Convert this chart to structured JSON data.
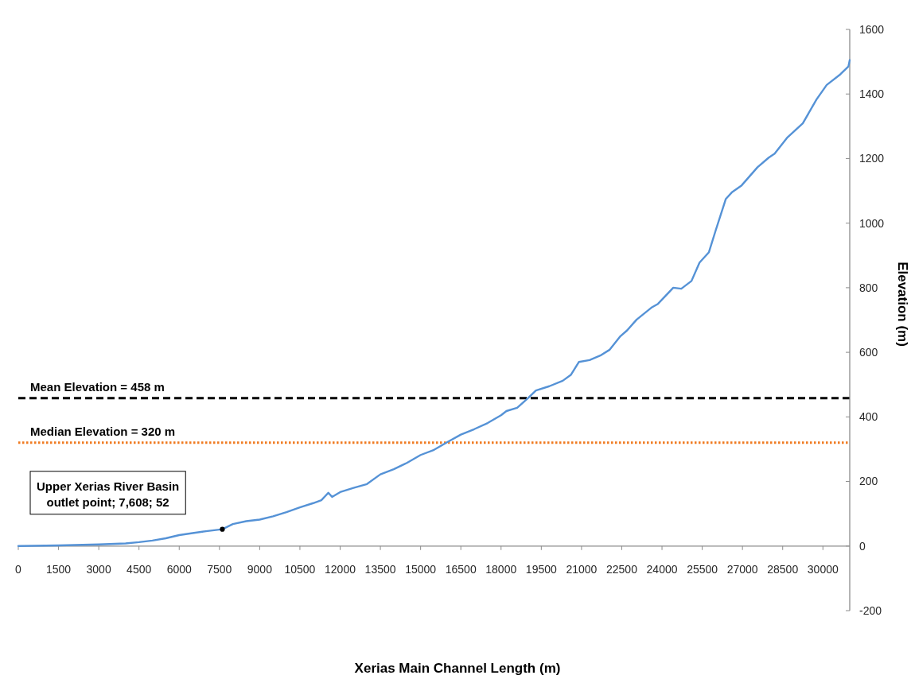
{
  "chart_data": {
    "type": "line",
    "xlabel": "Xerias Main Channel Length (m)",
    "ylabel": "Elevation (m)",
    "xlim": [
      0,
      31000
    ],
    "xticks": [
      0,
      1500,
      3000,
      4500,
      6000,
      7500,
      9000,
      10500,
      12000,
      13500,
      15000,
      16500,
      18000,
      19500,
      21000,
      22500,
      24000,
      25500,
      27000,
      28500,
      30000
    ],
    "ylim": [
      -200,
      1600
    ],
    "yticks": [
      -200,
      0,
      200,
      400,
      600,
      800,
      1000,
      1200,
      1400,
      1600
    ],
    "series": [
      {
        "color": "#5592d6",
        "x": [
          0,
          1500,
          3000,
          4000,
          4500,
          5000,
          5500,
          6000,
          6500,
          7000,
          7608,
          8000,
          8500,
          9000,
          9500,
          10000,
          10500,
          11000,
          11300,
          11560,
          11700,
          12000,
          12500,
          13000,
          13500,
          14000,
          14500,
          15000,
          15500,
          16000,
          16500,
          17000,
          17500,
          18000,
          18200,
          18600,
          19000,
          19300,
          19800,
          20300,
          20600,
          20900,
          21300,
          21700,
          22050,
          22450,
          22700,
          23050,
          23600,
          23850,
          24420,
          24720,
          25100,
          25400,
          25750,
          26000,
          26380,
          26600,
          26970,
          27560,
          27980,
          28200,
          28660,
          29250,
          29760,
          30140,
          30650,
          30950,
          31000
        ],
        "values": [
          0,
          2,
          5,
          8,
          12,
          17,
          24,
          34,
          40,
          46,
          52,
          68,
          77,
          82,
          92,
          105,
          120,
          133,
          142,
          165,
          152,
          167,
          180,
          192,
          222,
          238,
          258,
          282,
          298,
          322,
          345,
          362,
          381,
          405,
          418,
          428,
          458,
          482,
          495,
          512,
          530,
          570,
          576,
          590,
          608,
          650,
          668,
          701,
          738,
          750,
          800,
          797,
          821,
          878,
          910,
          977,
          1075,
          1095,
          1117,
          1173,
          1203,
          1215,
          1264,
          1309,
          1383,
          1428,
          1461,
          1485,
          1505
        ]
      },
      {
        "type": "scatter",
        "color": "#000000",
        "marker": "circle",
        "x": [
          7608
        ],
        "values": [
          52
        ]
      }
    ],
    "ref_lines": [
      {
        "axis": "y",
        "value": 458,
        "label": "Mean Elevation = 458 m",
        "color": "#000000",
        "line_style": "dashed"
      },
      {
        "axis": "y",
        "value": 320,
        "label": "Median Elevation = 320 m",
        "color": "#f07b21",
        "line_style": "dotted"
      }
    ],
    "annotations": [
      "Upper Xerias River Basin outlet point; 7,608; 52"
    ]
  }
}
